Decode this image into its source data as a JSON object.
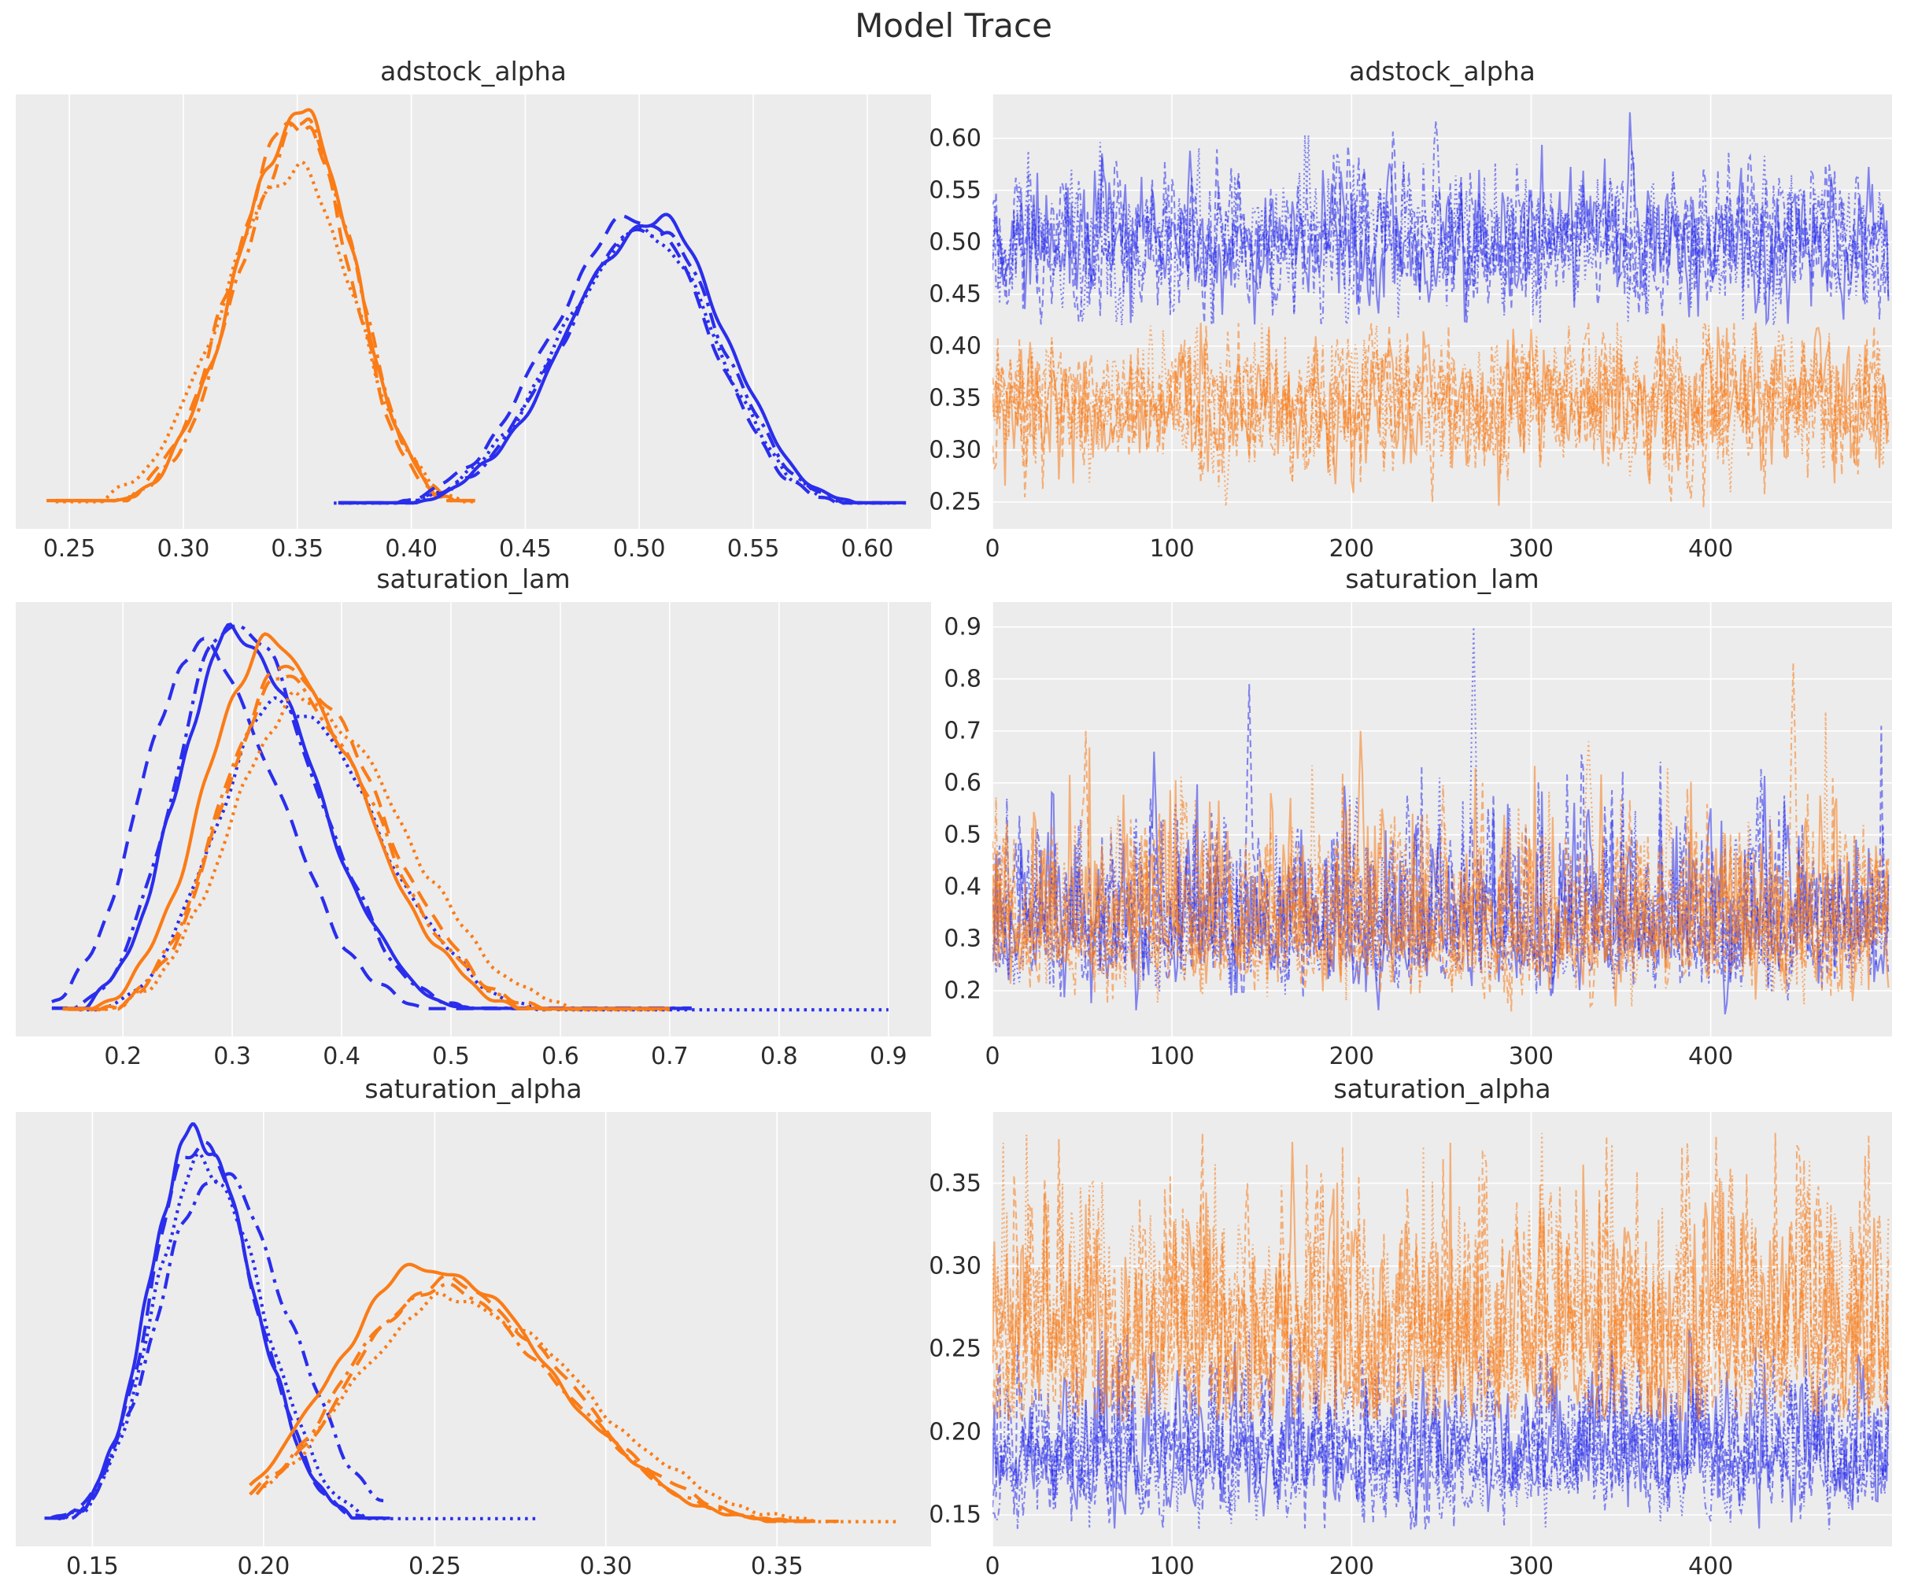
{
  "title": "Model Trace",
  "colors": {
    "blue": "#2a2eec",
    "orange": "#fa7c17",
    "axes_background": "#ececec",
    "grid": "#ffffff",
    "text": "#2c2c2c",
    "figure_background": "#ffffff"
  },
  "chain_linestyles": [
    "solid",
    "dashed",
    "dashdot",
    "dotted"
  ],
  "chart_data": [
    {
      "id": "adstock_alpha_density",
      "type": "kde",
      "title": "adstock_alpha",
      "xlim": [
        0.2265,
        0.628
      ],
      "xticks": [
        0.25,
        0.3,
        0.35,
        0.4,
        0.45,
        0.5,
        0.55,
        0.6
      ],
      "xtick_labels": [
        "0.25",
        "0.30",
        "0.35",
        "0.40",
        "0.45",
        "0.50",
        "0.55",
        "0.60"
      ],
      "grid": {
        "vertical": true,
        "horizontal": false
      },
      "series": [
        {
          "name": "orange",
          "color": "#fa7c17",
          "mean": 0.352,
          "sd_left": 0.0285,
          "sd_right": 0.0235,
          "x_range": [
            0.244,
            0.428
          ],
          "chains": [
            {
              "linestyle": "solid",
              "mu": 0.352,
              "amp": 1.0,
              "seed": 101
            },
            {
              "linestyle": "dashed",
              "mu": 0.35,
              "amp": 0.985,
              "x_range": [
                0.24,
                0.426
              ],
              "seed": 102
            },
            {
              "linestyle": "dashdot",
              "mu": 0.353,
              "amp": 0.97,
              "seed": 103
            },
            {
              "linestyle": "dotted",
              "mu": 0.349,
              "amp": 0.86,
              "sd_scale": 1.12,
              "seed": 104
            }
          ]
        },
        {
          "name": "blue",
          "color": "#2a2eec",
          "mean": 0.505,
          "sd_left": 0.0385,
          "sd_right": 0.031,
          "x_range": [
            0.368,
            0.617
          ],
          "chains": [
            {
              "linestyle": "solid",
              "mu": 0.507,
              "amp": 0.735,
              "seed": 111
            },
            {
              "linestyle": "dashed",
              "mu": 0.5,
              "amp": 0.74,
              "x_range": [
                0.368,
                0.606
              ],
              "seed": 112
            },
            {
              "linestyle": "dashdot",
              "mu": 0.505,
              "amp": 0.715,
              "seed": 113
            },
            {
              "linestyle": "dotted",
              "mu": 0.503,
              "amp": 0.7,
              "x_range": [
                0.366,
                0.61
              ],
              "seed": 114
            }
          ]
        }
      ]
    },
    {
      "id": "adstock_alpha_trace",
      "type": "trace",
      "title": "adstock_alpha",
      "n_draws": 500,
      "xlim": [
        0,
        501
      ],
      "xticks": [
        0,
        100,
        200,
        300,
        400
      ],
      "xtick_labels": [
        "0",
        "100",
        "200",
        "300",
        "400"
      ],
      "ylim": [
        0.2242,
        0.6422
      ],
      "yticks": [
        0.25,
        0.3,
        0.35,
        0.4,
        0.45,
        0.5,
        0.55,
        0.6
      ],
      "ytick_labels": [
        "0.25",
        "0.30",
        "0.35",
        "0.40",
        "0.45",
        "0.50",
        "0.55",
        "0.60"
      ],
      "grid": {
        "vertical": true,
        "horizontal": true
      },
      "series": [
        {
          "name": "orange",
          "color": "#fa7c17",
          "center": 0.346,
          "sigma": 0.031,
          "phi": 0.3,
          "skew": 0,
          "clamp": [
            0.245,
            0.423
          ],
          "spike_p": 0,
          "spike_amp": 0,
          "chains": [
            {
              "seed": 121
            },
            {
              "seed": 122
            },
            {
              "seed": 123
            },
            {
              "seed": 124
            }
          ],
          "features": [
            {
              "chain": 3,
              "x": 130,
              "v": 0.246
            },
            {
              "chain": 2,
              "x": 389,
              "v": 0.252
            }
          ]
        },
        {
          "name": "blue",
          "color": "#2a2eec",
          "center": 0.501,
          "sigma": 0.031,
          "phi": 0.3,
          "skew": 0,
          "clamp": [
            0.42,
            0.627
          ],
          "spike_p": 0,
          "spike_amp": 0,
          "chains": [
            {
              "seed": 131
            },
            {
              "seed": 132
            },
            {
              "seed": 133
            },
            {
              "seed": 134
            }
          ],
          "features": [
            {
              "chain": 0,
              "x": 355,
              "v": 0.625
            },
            {
              "chain": 2,
              "x": 247,
              "v": 0.617
            }
          ]
        }
      ]
    },
    {
      "id": "saturation_lam_density",
      "type": "kde",
      "title": "saturation_lam",
      "xlim": [
        0.102,
        0.939
      ],
      "xticks": [
        0.2,
        0.3,
        0.4,
        0.5,
        0.6,
        0.7,
        0.8,
        0.9
      ],
      "xtick_labels": [
        "0.2",
        "0.3",
        "0.4",
        "0.5",
        "0.6",
        "0.7",
        "0.8",
        "0.9"
      ],
      "grid": {
        "vertical": true,
        "horizontal": false
      },
      "series": [
        {
          "name": "blue",
          "color": "#2a2eec",
          "mean": 0.3,
          "sd_left": 0.052,
          "sd_right": 0.075,
          "x_range": [
            0.135,
            0.72
          ],
          "chains": [
            {
              "linestyle": "solid",
              "mu": 0.302,
              "amp": 0.97,
              "seed": 201
            },
            {
              "linestyle": "dashed",
              "mu": 0.268,
              "amp": 0.93,
              "seed": 202
            },
            {
              "linestyle": "dashdot",
              "mu": 0.3,
              "amp": 1.0,
              "seed": 203
            },
            {
              "linestyle": "dotted",
              "mu": 0.345,
              "amp": 0.8,
              "sd_scale": 1.15,
              "x_range": [
                0.16,
                0.9
              ],
              "seed": 204
            }
          ]
        },
        {
          "name": "orange",
          "color": "#fa7c17",
          "mean": 0.345,
          "sd_left": 0.058,
          "sd_right": 0.085,
          "x_range": [
            0.145,
            0.7
          ],
          "chains": [
            {
              "linestyle": "solid",
              "mu": 0.332,
              "amp": 0.94,
              "seed": 211
            },
            {
              "linestyle": "dashed",
              "mu": 0.349,
              "amp": 0.88,
              "seed": 212
            },
            {
              "linestyle": "dashdot",
              "mu": 0.345,
              "amp": 0.85,
              "x_range": [
                0.15,
                0.615
              ],
              "seed": 213
            },
            {
              "linestyle": "dotted",
              "mu": 0.362,
              "amp": 0.8,
              "sd_scale": 1.1,
              "x_range": [
                0.17,
                0.7
              ],
              "seed": 214
            }
          ]
        }
      ]
    },
    {
      "id": "saturation_lam_trace",
      "type": "trace",
      "title": "saturation_lam",
      "n_draws": 500,
      "xlim": [
        0,
        501
      ],
      "xticks": [
        0,
        100,
        200,
        300,
        400
      ],
      "xtick_labels": [
        "0",
        "100",
        "200",
        "300",
        "400"
      ],
      "ylim": [
        0.112,
        0.948
      ],
      "yticks": [
        0.2,
        0.3,
        0.4,
        0.5,
        0.6,
        0.7,
        0.8,
        0.9
      ],
      "ytick_labels": [
        "0.2",
        "0.3",
        "0.4",
        "0.5",
        "0.6",
        "0.7",
        "0.8",
        "0.9"
      ],
      "grid": {
        "vertical": true,
        "horizontal": true
      },
      "series": [
        {
          "name": "blue",
          "color": "#2a2eec",
          "center": 0.31,
          "sigma": 0.05,
          "phi": 0.25,
          "skew": 1.1,
          "clamp": [
            0.152,
            0.905
          ],
          "spike_p": 0.012,
          "spike_amp": 0.26,
          "chains": [
            {
              "seed": 221
            },
            {
              "seed": 222
            },
            {
              "seed": 223
            },
            {
              "seed": 224
            }
          ],
          "features": [
            {
              "chain": 3,
              "x": 268,
              "v": 0.9
            },
            {
              "chain": 1,
              "x": 143,
              "v": 0.79
            },
            {
              "chain": 0,
              "x": 90,
              "v": 0.66
            }
          ]
        },
        {
          "name": "orange",
          "color": "#fa7c17",
          "center": 0.31,
          "sigma": 0.05,
          "phi": 0.25,
          "skew": 1.1,
          "clamp": [
            0.152,
            0.905
          ],
          "spike_p": 0.012,
          "spike_amp": 0.26,
          "chains": [
            {
              "seed": 231
            },
            {
              "seed": 232
            },
            {
              "seed": 233
            },
            {
              "seed": 234
            }
          ],
          "features": [
            {
              "chain": 1,
              "x": 52,
              "v": 0.7
            },
            {
              "chain": 2,
              "x": 446,
              "v": 0.83
            },
            {
              "chain": 0,
              "x": 205,
              "v": 0.7
            },
            {
              "chain": 3,
              "x": 332,
              "v": 0.68
            }
          ]
        }
      ]
    },
    {
      "id": "saturation_alpha_density",
      "type": "kde",
      "title": "saturation_alpha",
      "xlim": [
        0.1276,
        0.395
      ],
      "xticks": [
        0.15,
        0.2,
        0.25,
        0.3,
        0.35
      ],
      "xtick_labels": [
        "0.15",
        "0.20",
        "0.25",
        "0.30",
        "0.35"
      ],
      "grid": {
        "vertical": true,
        "horizontal": false
      },
      "series": [
        {
          "name": "blue",
          "color": "#2a2eec",
          "mean": 0.182,
          "sd_left": 0.0135,
          "sd_right": 0.017,
          "x_range": [
            0.138,
            0.235
          ],
          "chains": [
            {
              "linestyle": "solid",
              "mu": 0.18,
              "amp": 1.0,
              "seed": 301
            },
            {
              "linestyle": "dashed",
              "mu": 0.1805,
              "amp": 0.975,
              "x_range": [
                0.136,
                0.237
              ],
              "seed": 302
            },
            {
              "linestyle": "dashdot",
              "mu": 0.186,
              "amp": 0.89,
              "sd_scale": 1.25,
              "seed": 303
            },
            {
              "linestyle": "dotted",
              "mu": 0.182,
              "amp": 0.92,
              "sd_scale": 1.05,
              "x_range": [
                0.14,
                0.28
              ],
              "seed": 304
            }
          ]
        },
        {
          "name": "orange",
          "color": "#fa7c17",
          "mean": 0.251,
          "sd_left": 0.027,
          "sd_right": 0.036,
          "x_range": [
            0.196,
            0.36
          ],
          "chains": [
            {
              "linestyle": "solid",
              "mu": 0.2475,
              "amp": 0.66,
              "seed": 311
            },
            {
              "linestyle": "dashed",
              "mu": 0.252,
              "amp": 0.615,
              "x_range": [
                0.198,
                0.368
              ],
              "seed": 312
            },
            {
              "linestyle": "dashdot",
              "mu": 0.25,
              "amp": 0.6,
              "seed": 313
            },
            {
              "linestyle": "dotted",
              "mu": 0.2545,
              "amp": 0.575,
              "sd_scale": 1.08,
              "x_range": [
                0.2,
                0.385
              ],
              "seed": 314
            }
          ]
        }
      ]
    },
    {
      "id": "saturation_alpha_trace",
      "type": "trace",
      "title": "saturation_alpha",
      "n_draws": 500,
      "xlim": [
        0,
        501
      ],
      "xticks": [
        0,
        100,
        200,
        300,
        400
      ],
      "xtick_labels": [
        "0",
        "100",
        "200",
        "300",
        "400"
      ],
      "ylim": [
        0.131,
        0.393
      ],
      "yticks": [
        0.15,
        0.2,
        0.25,
        0.3,
        0.35
      ],
      "ytick_labels": [
        "0.15",
        "0.20",
        "0.25",
        "0.30",
        "0.35"
      ],
      "grid": {
        "vertical": true,
        "horizontal": true
      },
      "series": [
        {
          "name": "blue",
          "color": "#2a2eec",
          "center": 0.183,
          "sigma": 0.0155,
          "phi": 0.3,
          "skew": 0.8,
          "clamp": [
            0.141,
            0.262
          ],
          "spike_p": 0.005,
          "spike_amp": 0.045,
          "chains": [
            {
              "seed": 321
            },
            {
              "seed": 322
            },
            {
              "seed": 323
            },
            {
              "seed": 324
            }
          ],
          "features": [
            {
              "chain": 2,
              "x": 130,
              "v": 0.246
            },
            {
              "chain": 0,
              "x": 345,
              "v": 0.248
            }
          ]
        },
        {
          "name": "orange",
          "color": "#fa7c17",
          "center": 0.252,
          "sigma": 0.026,
          "phi": 0.3,
          "skew": 0.9,
          "clamp": [
            0.207,
            0.381
          ],
          "spike_p": 0.008,
          "spike_amp": 0.06,
          "chains": [
            {
              "seed": 331
            },
            {
              "seed": 332
            },
            {
              "seed": 333
            },
            {
              "seed": 334
            }
          ],
          "features": [
            {
              "chain": 3,
              "x": 54,
              "v": 0.348
            },
            {
              "chain": 1,
              "x": 142,
              "v": 0.35
            },
            {
              "chain": 0,
              "x": 305,
              "v": 0.335
            }
          ]
        }
      ]
    }
  ]
}
